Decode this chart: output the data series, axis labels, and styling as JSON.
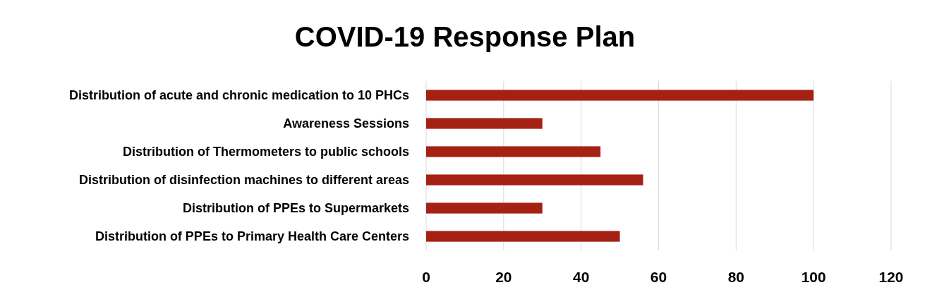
{
  "chart_data": {
    "type": "bar",
    "orientation": "horizontal",
    "title": "COVID-19 Response Plan",
    "categories": [
      "Distribution of acute and chronic medication to 10 PHCs",
      "Awareness Sessions",
      "Distribution of Thermometers to public schools",
      "Distribution of disinfection machines to different areas",
      "Distribution of PPEs to Supermarkets",
      "Distribution of PPEs to Primary Health Care Centers"
    ],
    "values": [
      100,
      30,
      45,
      56,
      30,
      50
    ],
    "color": "#a52114",
    "xlim": [
      0,
      120
    ],
    "xticks": [
      0,
      20,
      40,
      60,
      80,
      100,
      120
    ],
    "grid": "x"
  }
}
